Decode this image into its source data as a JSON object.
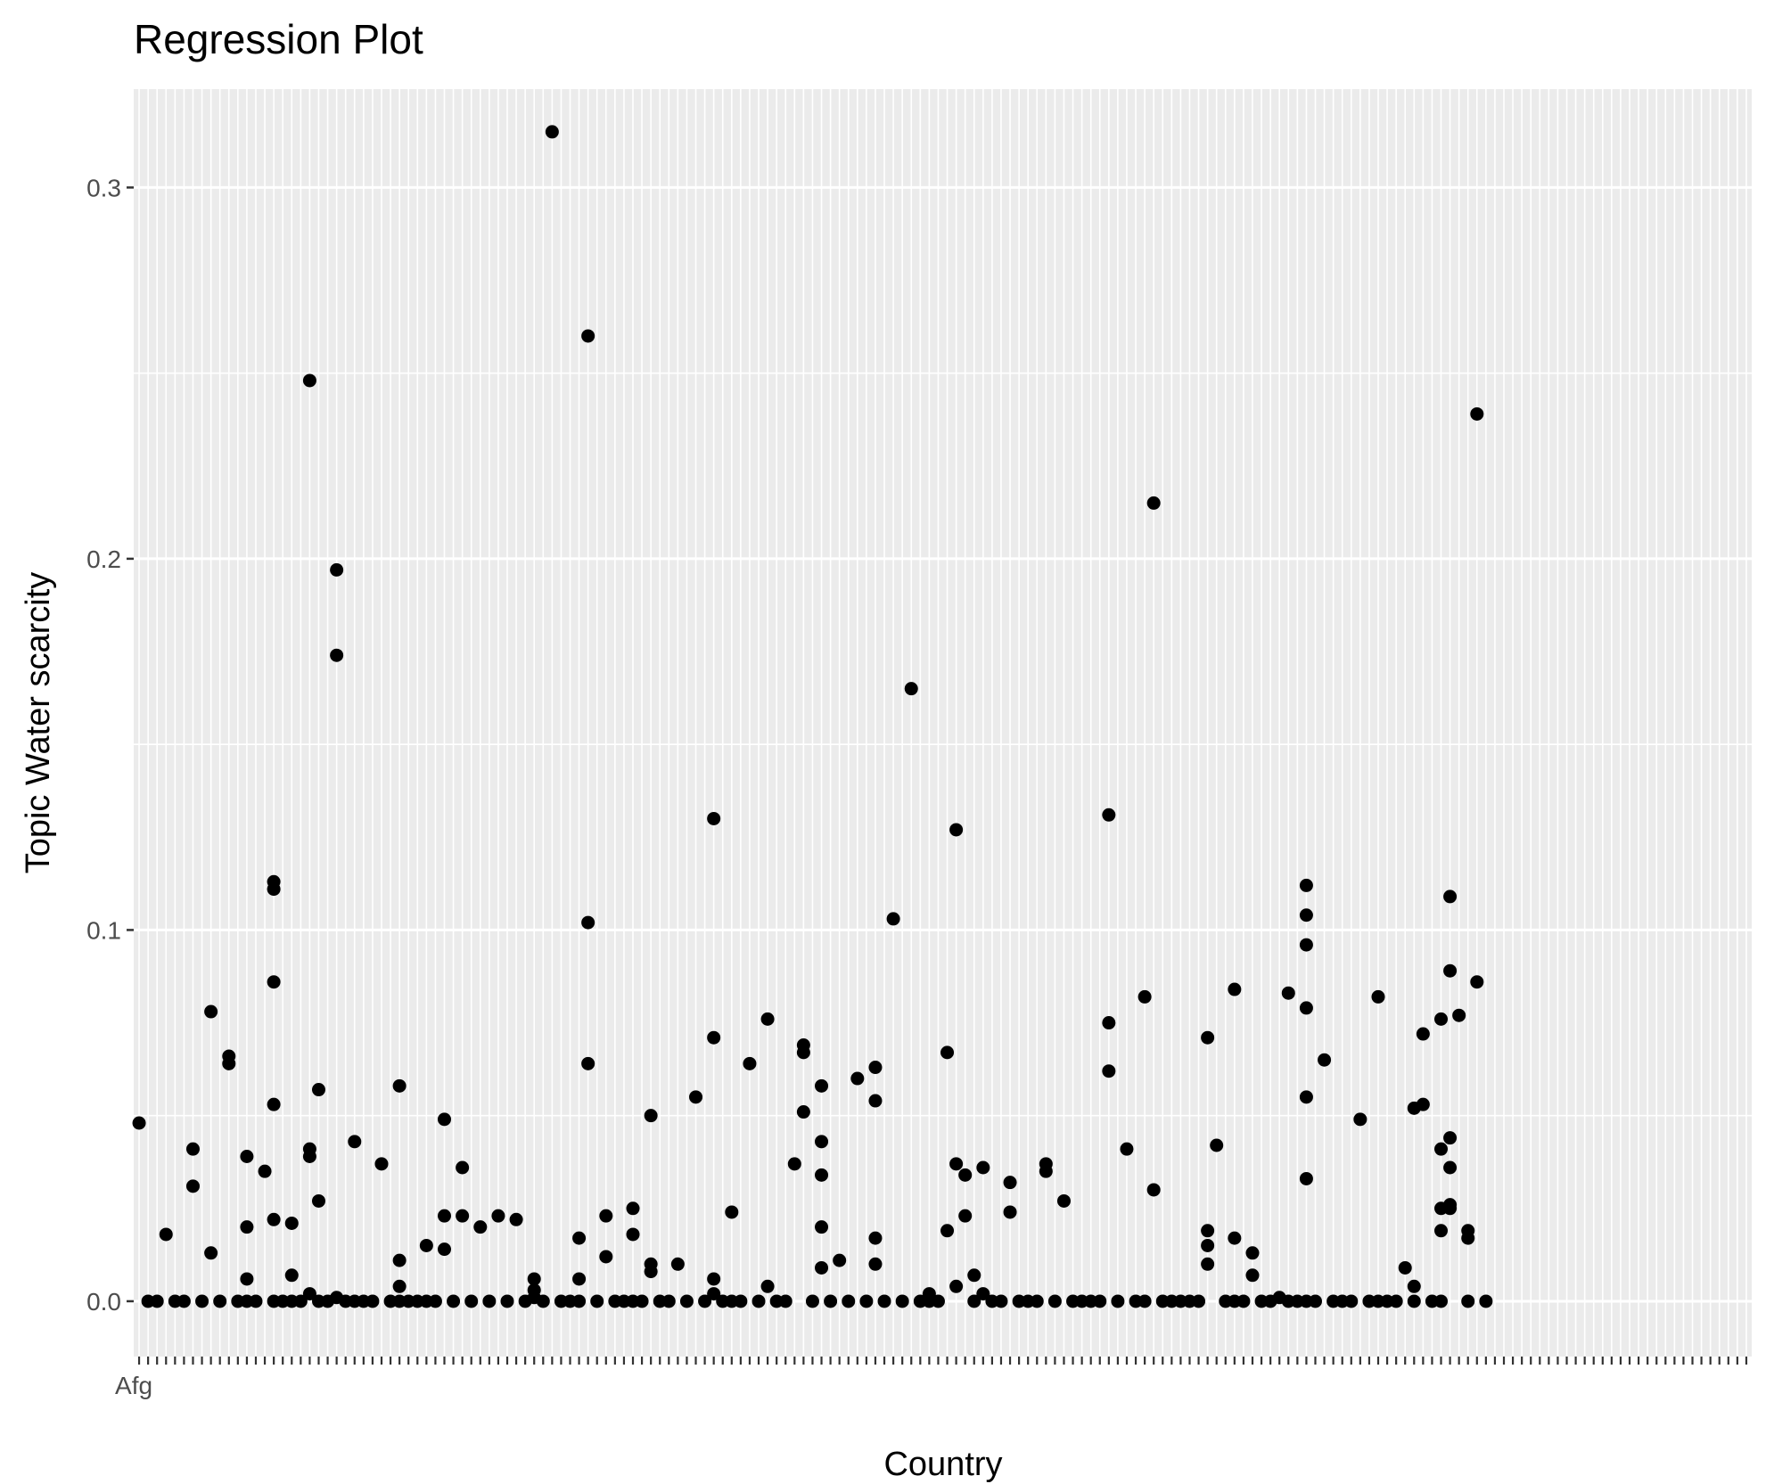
{
  "chart_data": {
    "type": "scatter",
    "title": "Regression Plot",
    "xlabel": "Country",
    "ylabel": "Topic Water scarcity",
    "ylim": [
      -0.0149,
      0.3265
    ],
    "yticks": [
      0.0,
      0.1,
      0.2,
      0.3
    ],
    "ytick_labels": [
      "0.0",
      "0.1",
      "0.2",
      "0.3"
    ],
    "category_count": 180,
    "visible_first_category_label": "Afg",
    "grid": true,
    "legend": "none",
    "colors": {
      "panel": "#ebebeb",
      "grid": "#ffffff",
      "point": "#000000",
      "tick_text": "#4d4d4d"
    },
    "points": [
      [
        0,
        0.048
      ],
      [
        1,
        0.0
      ],
      [
        2,
        0.0
      ],
      [
        3,
        0.018
      ],
      [
        4,
        0.0
      ],
      [
        5,
        0.0
      ],
      [
        6,
        0.031
      ],
      [
        6,
        0.041
      ],
      [
        7,
        0.0
      ],
      [
        8,
        0.013
      ],
      [
        8,
        0.078
      ],
      [
        9,
        0.0
      ],
      [
        10,
        0.064
      ],
      [
        10,
        0.066
      ],
      [
        11,
        0.0
      ],
      [
        12,
        0.0
      ],
      [
        12,
        0.039
      ],
      [
        12,
        0.02
      ],
      [
        12,
        0.006
      ],
      [
        13,
        0.0
      ],
      [
        14,
        0.035
      ],
      [
        15,
        0.113
      ],
      [
        15,
        0.111
      ],
      [
        15,
        0.086
      ],
      [
        15,
        0.053
      ],
      [
        15,
        0.022
      ],
      [
        15,
        0.0
      ],
      [
        16,
        0.0
      ],
      [
        17,
        0.0
      ],
      [
        17,
        0.021
      ],
      [
        17,
        0.007
      ],
      [
        18,
        0.0
      ],
      [
        19,
        0.248
      ],
      [
        19,
        0.041
      ],
      [
        19,
        0.039
      ],
      [
        19,
        0.002
      ],
      [
        20,
        0.0
      ],
      [
        20,
        0.027
      ],
      [
        20,
        0.057
      ],
      [
        21,
        0.0
      ],
      [
        22,
        0.197
      ],
      [
        22,
        0.174
      ],
      [
        22,
        0.001
      ],
      [
        23,
        0.0
      ],
      [
        24,
        0.043
      ],
      [
        24,
        0.0
      ],
      [
        25,
        0.0
      ],
      [
        26,
        0.0
      ],
      [
        27,
        0.037
      ],
      [
        28,
        0.0
      ],
      [
        29,
        0.058
      ],
      [
        29,
        0.011
      ],
      [
        29,
        0.004
      ],
      [
        29,
        0.0
      ],
      [
        30,
        0.0
      ],
      [
        31,
        0.0
      ],
      [
        32,
        0.015
      ],
      [
        32,
        0.0
      ],
      [
        33,
        0.0
      ],
      [
        34,
        0.049
      ],
      [
        34,
        0.023
      ],
      [
        34,
        0.014
      ],
      [
        35,
        0.0
      ],
      [
        36,
        0.023
      ],
      [
        36,
        0.036
      ],
      [
        37,
        0.0
      ],
      [
        38,
        0.02
      ],
      [
        39,
        0.0
      ],
      [
        40,
        0.023
      ],
      [
        41,
        0.0
      ],
      [
        42,
        0.022
      ],
      [
        43,
        0.0
      ],
      [
        44,
        0.006
      ],
      [
        44,
        0.003
      ],
      [
        44,
        0.001
      ],
      [
        45,
        0.0
      ],
      [
        46,
        0.315
      ],
      [
        47,
        0.0
      ],
      [
        48,
        0.0
      ],
      [
        49,
        0.017
      ],
      [
        49,
        0.0
      ],
      [
        49,
        0.006
      ],
      [
        50,
        0.26
      ],
      [
        50,
        0.102
      ],
      [
        50,
        0.064
      ],
      [
        51,
        0.0
      ],
      [
        52,
        0.023
      ],
      [
        52,
        0.012
      ],
      [
        53,
        0.0
      ],
      [
        54,
        0.0
      ],
      [
        55,
        0.025
      ],
      [
        55,
        0.018
      ],
      [
        55,
        0.0
      ],
      [
        56,
        0.0
      ],
      [
        57,
        0.05
      ],
      [
        57,
        0.008
      ],
      [
        57,
        0.01
      ],
      [
        58,
        0.0
      ],
      [
        59,
        0.0
      ],
      [
        60,
        0.01
      ],
      [
        61,
        0.0
      ],
      [
        62,
        0.055
      ],
      [
        63,
        0.0
      ],
      [
        64,
        0.13
      ],
      [
        64,
        0.071
      ],
      [
        64,
        0.006
      ],
      [
        64,
        0.002
      ],
      [
        65,
        0.0
      ],
      [
        66,
        0.024
      ],
      [
        66,
        0.0
      ],
      [
        67,
        0.0
      ],
      [
        68,
        0.064
      ],
      [
        69,
        0.0
      ],
      [
        70,
        0.076
      ],
      [
        70,
        0.004
      ],
      [
        71,
        0.0
      ],
      [
        72,
        0.0
      ],
      [
        73,
        0.037
      ],
      [
        74,
        0.069
      ],
      [
        74,
        0.067
      ],
      [
        74,
        0.051
      ],
      [
        75,
        0.0
      ],
      [
        76,
        0.058
      ],
      [
        76,
        0.043
      ],
      [
        76,
        0.034
      ],
      [
        76,
        0.02
      ],
      [
        76,
        0.009
      ],
      [
        77,
        0.0
      ],
      [
        78,
        0.011
      ],
      [
        79,
        0.0
      ],
      [
        80,
        0.06
      ],
      [
        81,
        0.0
      ],
      [
        82,
        0.063
      ],
      [
        82,
        0.054
      ],
      [
        82,
        0.017
      ],
      [
        82,
        0.01
      ],
      [
        83,
        0.0
      ],
      [
        84,
        0.103
      ],
      [
        85,
        0.0
      ],
      [
        86,
        0.165
      ],
      [
        87,
        0.0
      ],
      [
        88,
        0.002
      ],
      [
        88,
        0.0
      ],
      [
        89,
        0.0
      ],
      [
        90,
        0.067
      ],
      [
        90,
        0.019
      ],
      [
        91,
        0.127
      ],
      [
        91,
        0.037
      ],
      [
        91,
        0.004
      ],
      [
        92,
        0.034
      ],
      [
        92,
        0.023
      ],
      [
        93,
        0.0
      ],
      [
        93,
        0.007
      ],
      [
        94,
        0.036
      ],
      [
        94,
        0.002
      ],
      [
        95,
        0.0
      ],
      [
        96,
        0.0
      ],
      [
        97,
        0.032
      ],
      [
        97,
        0.024
      ],
      [
        98,
        0.0
      ],
      [
        99,
        0.0
      ],
      [
        100,
        0.0
      ],
      [
        101,
        0.037
      ],
      [
        101,
        0.035
      ],
      [
        102,
        0.0
      ],
      [
        103,
        0.027
      ],
      [
        104,
        0.0
      ],
      [
        105,
        0.0
      ],
      [
        106,
        0.0
      ],
      [
        107,
        0.0
      ],
      [
        108,
        0.131
      ],
      [
        108,
        0.075
      ],
      [
        108,
        0.062
      ],
      [
        109,
        0.0
      ],
      [
        110,
        0.041
      ],
      [
        111,
        0.0
      ],
      [
        112,
        0.082
      ],
      [
        112,
        0.0
      ],
      [
        113,
        0.215
      ],
      [
        113,
        0.03
      ],
      [
        114,
        0.0
      ],
      [
        115,
        0.0
      ],
      [
        116,
        0.0
      ],
      [
        117,
        0.0
      ],
      [
        118,
        0.0
      ],
      [
        119,
        0.071
      ],
      [
        119,
        0.019
      ],
      [
        119,
        0.015
      ],
      [
        119,
        0.01
      ],
      [
        120,
        0.042
      ],
      [
        121,
        0.0
      ],
      [
        122,
        0.084
      ],
      [
        122,
        0.017
      ],
      [
        122,
        0.0
      ],
      [
        123,
        0.0
      ],
      [
        124,
        0.013
      ],
      [
        124,
        0.007
      ],
      [
        125,
        0.0
      ],
      [
        126,
        0.0
      ],
      [
        127,
        0.001
      ],
      [
        128,
        0.083
      ],
      [
        128,
        0.0
      ],
      [
        129,
        0.0
      ],
      [
        130,
        0.112
      ],
      [
        130,
        0.104
      ],
      [
        130,
        0.096
      ],
      [
        130,
        0.079
      ],
      [
        130,
        0.055
      ],
      [
        130,
        0.033
      ],
      [
        130,
        0.0
      ],
      [
        131,
        0.0
      ],
      [
        132,
        0.065
      ],
      [
        133,
        0.0
      ],
      [
        134,
        0.0
      ],
      [
        135,
        0.0
      ],
      [
        136,
        0.049
      ],
      [
        137,
        0.0
      ],
      [
        138,
        0.082
      ],
      [
        138,
        0.0
      ],
      [
        139,
        0.0
      ],
      [
        140,
        0.0
      ],
      [
        141,
        0.009
      ],
      [
        142,
        0.052
      ],
      [
        142,
        0.004
      ],
      [
        142,
        0.0
      ],
      [
        143,
        0.053
      ],
      [
        143,
        0.072
      ],
      [
        144,
        0.0
      ],
      [
        145,
        0.076
      ],
      [
        145,
        0.041
      ],
      [
        145,
        0.025
      ],
      [
        145,
        0.019
      ],
      [
        145,
        0.0
      ],
      [
        146,
        0.109
      ],
      [
        146,
        0.089
      ],
      [
        146,
        0.044
      ],
      [
        146,
        0.036
      ],
      [
        146,
        0.026
      ],
      [
        146,
        0.025
      ],
      [
        147,
        0.077
      ],
      [
        148,
        0.019
      ],
      [
        148,
        0.017
      ],
      [
        148,
        0.0
      ],
      [
        149,
        0.239
      ],
      [
        149,
        0.086
      ],
      [
        150,
        0.0
      ]
    ]
  }
}
